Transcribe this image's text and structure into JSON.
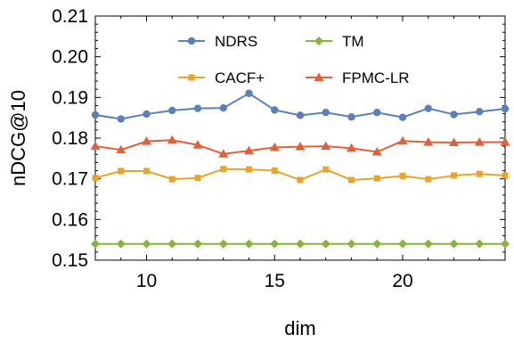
{
  "chart_data": {
    "type": "line",
    "title": "",
    "xlabel": "dim",
    "ylabel": "nDCG@10",
    "xlim": [
      8,
      24
    ],
    "ylim": [
      0.15,
      0.21
    ],
    "x_ticks": [
      10,
      15,
      20
    ],
    "y_ticks": [
      0.15,
      0.16,
      0.17,
      0.18,
      0.19,
      0.2,
      0.21
    ],
    "y_tick_labels": [
      "0.15",
      "0.16",
      "0.17",
      "0.18",
      "0.19",
      "0.20",
      "0.21"
    ],
    "grid": false,
    "legend_position": "top",
    "x": [
      8,
      9,
      10,
      11,
      12,
      13,
      14,
      15,
      16,
      17,
      18,
      19,
      20,
      21,
      22,
      23,
      24
    ],
    "series": [
      {
        "name": "NDRS",
        "color": "#5b7fb8",
        "marker": "circle",
        "values": [
          0.1857,
          0.1847,
          0.1859,
          0.1868,
          0.1873,
          0.1874,
          0.191,
          0.1869,
          0.1856,
          0.1863,
          0.1852,
          0.1863,
          0.1851,
          0.1873,
          0.1858,
          0.1865,
          0.1872
        ]
      },
      {
        "name": "TM",
        "color": "#86b53d",
        "marker": "diamond",
        "values": [
          0.154,
          0.154,
          0.154,
          0.154,
          0.154,
          0.154,
          0.154,
          0.154,
          0.154,
          0.154,
          0.154,
          0.154,
          0.154,
          0.154,
          0.154,
          0.154,
          0.154
        ]
      },
      {
        "name": "CACF+",
        "color": "#e8a42b",
        "marker": "square",
        "values": [
          0.1702,
          0.1719,
          0.1719,
          0.1699,
          0.1702,
          0.1724,
          0.1723,
          0.172,
          0.1697,
          0.1723,
          0.1697,
          0.1701,
          0.1707,
          0.1699,
          0.1708,
          0.1712,
          0.1708
        ]
      },
      {
        "name": "FPMC-LR",
        "color": "#e0603a",
        "marker": "triangle",
        "values": [
          0.178,
          0.1771,
          0.1792,
          0.1795,
          0.1783,
          0.1761,
          0.1769,
          0.1777,
          0.1779,
          0.178,
          0.1775,
          0.1766,
          0.1793,
          0.179,
          0.1789,
          0.179,
          0.179
        ]
      }
    ]
  }
}
